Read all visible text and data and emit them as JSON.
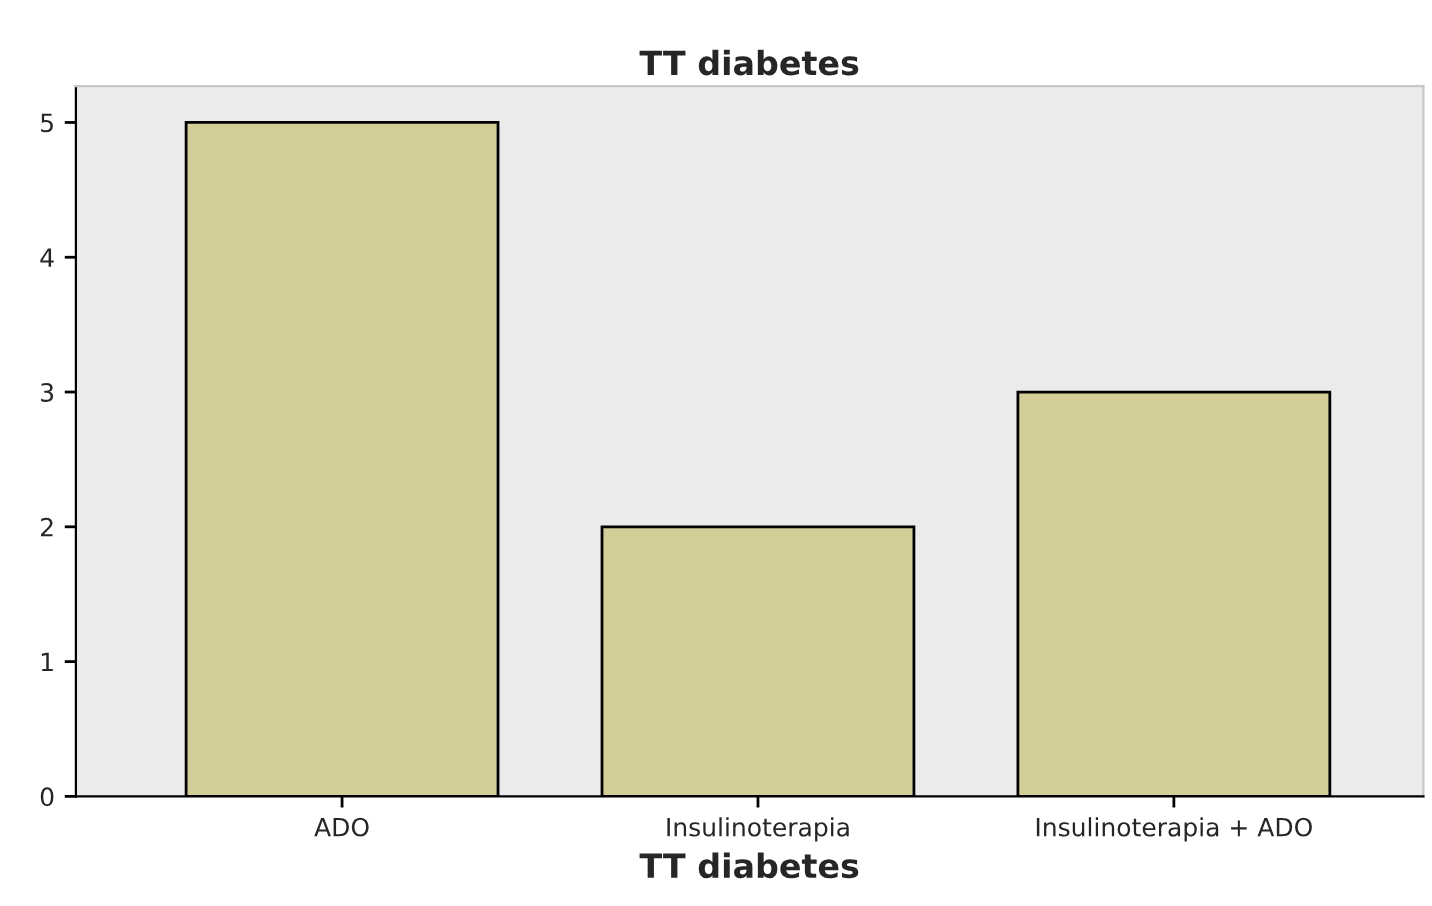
{
  "chart_data": {
    "type": "bar",
    "title": "TT diabetes",
    "xlabel": "TT diabetes",
    "categories": [
      "ADO",
      "Insulinoterapia",
      "Insulinoterapia + ADO"
    ],
    "values": [
      5,
      2,
      3
    ],
    "color": "#d3ce98",
    "ylim": [
      0,
      5.27
    ],
    "yticks": [
      0,
      1,
      2,
      3,
      4,
      5
    ],
    "grid": false,
    "legend": false
  }
}
